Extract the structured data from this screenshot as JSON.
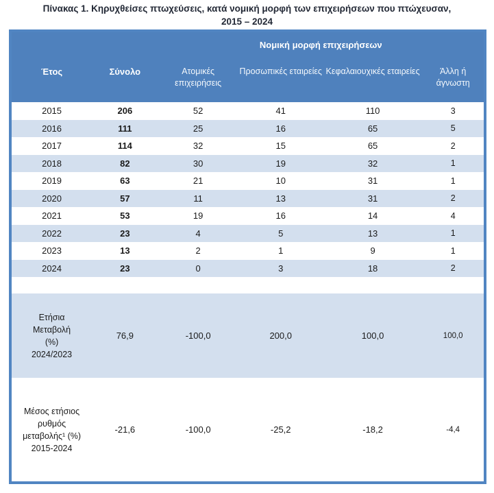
{
  "title": {
    "line1": "Πίνακας 1. Κηρυχθείσες πτωχεύσεις, κατά νομική μορφή των επιχειρήσεων που πτώχευσαν,",
    "line2": "2015 – 2024"
  },
  "table": {
    "group_header": "Νομική μορφή επιχειρήσεων",
    "columns": [
      "Έτος",
      "Σύνολο",
      "Ατομικές επιχειρήσεις",
      "Προσωπικές εταιρείες",
      "Κεφαλαιουχικές εταιρείες",
      "Άλλη ή άγνωστη"
    ],
    "rows": [
      {
        "year": "2015",
        "total": "206",
        "values": [
          "52",
          "41",
          "110",
          "3"
        ]
      },
      {
        "year": "2016",
        "total": "111",
        "values": [
          "25",
          "16",
          "65",
          "5"
        ]
      },
      {
        "year": "2017",
        "total": "114",
        "values": [
          "32",
          "15",
          "65",
          "2"
        ]
      },
      {
        "year": "2018",
        "total": "82",
        "values": [
          "30",
          "19",
          "32",
          "1"
        ]
      },
      {
        "year": "2019",
        "total": "63",
        "values": [
          "21",
          "10",
          "31",
          "1"
        ]
      },
      {
        "year": "2020",
        "total": "57",
        "values": [
          "11",
          "13",
          "31",
          "2"
        ]
      },
      {
        "year": "2021",
        "total": "53",
        "values": [
          "19",
          "16",
          "14",
          "4"
        ]
      },
      {
        "year": "2022",
        "total": "23",
        "values": [
          "4",
          "5",
          "13",
          "1"
        ]
      },
      {
        "year": "2023",
        "total": "13",
        "values": [
          "2",
          "1",
          "9",
          "1"
        ]
      },
      {
        "year": "2024",
        "total": "23",
        "values": [
          "0",
          "3",
          "18",
          "2"
        ]
      }
    ],
    "annual_change": {
      "label_lines": [
        "Ετήσια",
        "Μεταβολή",
        "(%)",
        "2024/2023"
      ],
      "values": [
        "76,9",
        "-100,0",
        "200,0",
        "100,0",
        "100,0"
      ]
    },
    "avg_change": {
      "label_lines": [
        "Μέσος ετήσιος",
        "ρυθμός",
        "μεταβολής¹ (%)",
        "2015-2024"
      ],
      "values": [
        "-21,6",
        "-100,0",
        "-25,2",
        "-18,2",
        "-4,4"
      ]
    }
  },
  "colors": {
    "header_blue": "#4F81BD",
    "border_blue": "#5185C2",
    "row_stripe": "#D3DFEE",
    "title_text": "#232936",
    "header_text": "#FFFFFF",
    "body_text": "#1A1A1A"
  }
}
